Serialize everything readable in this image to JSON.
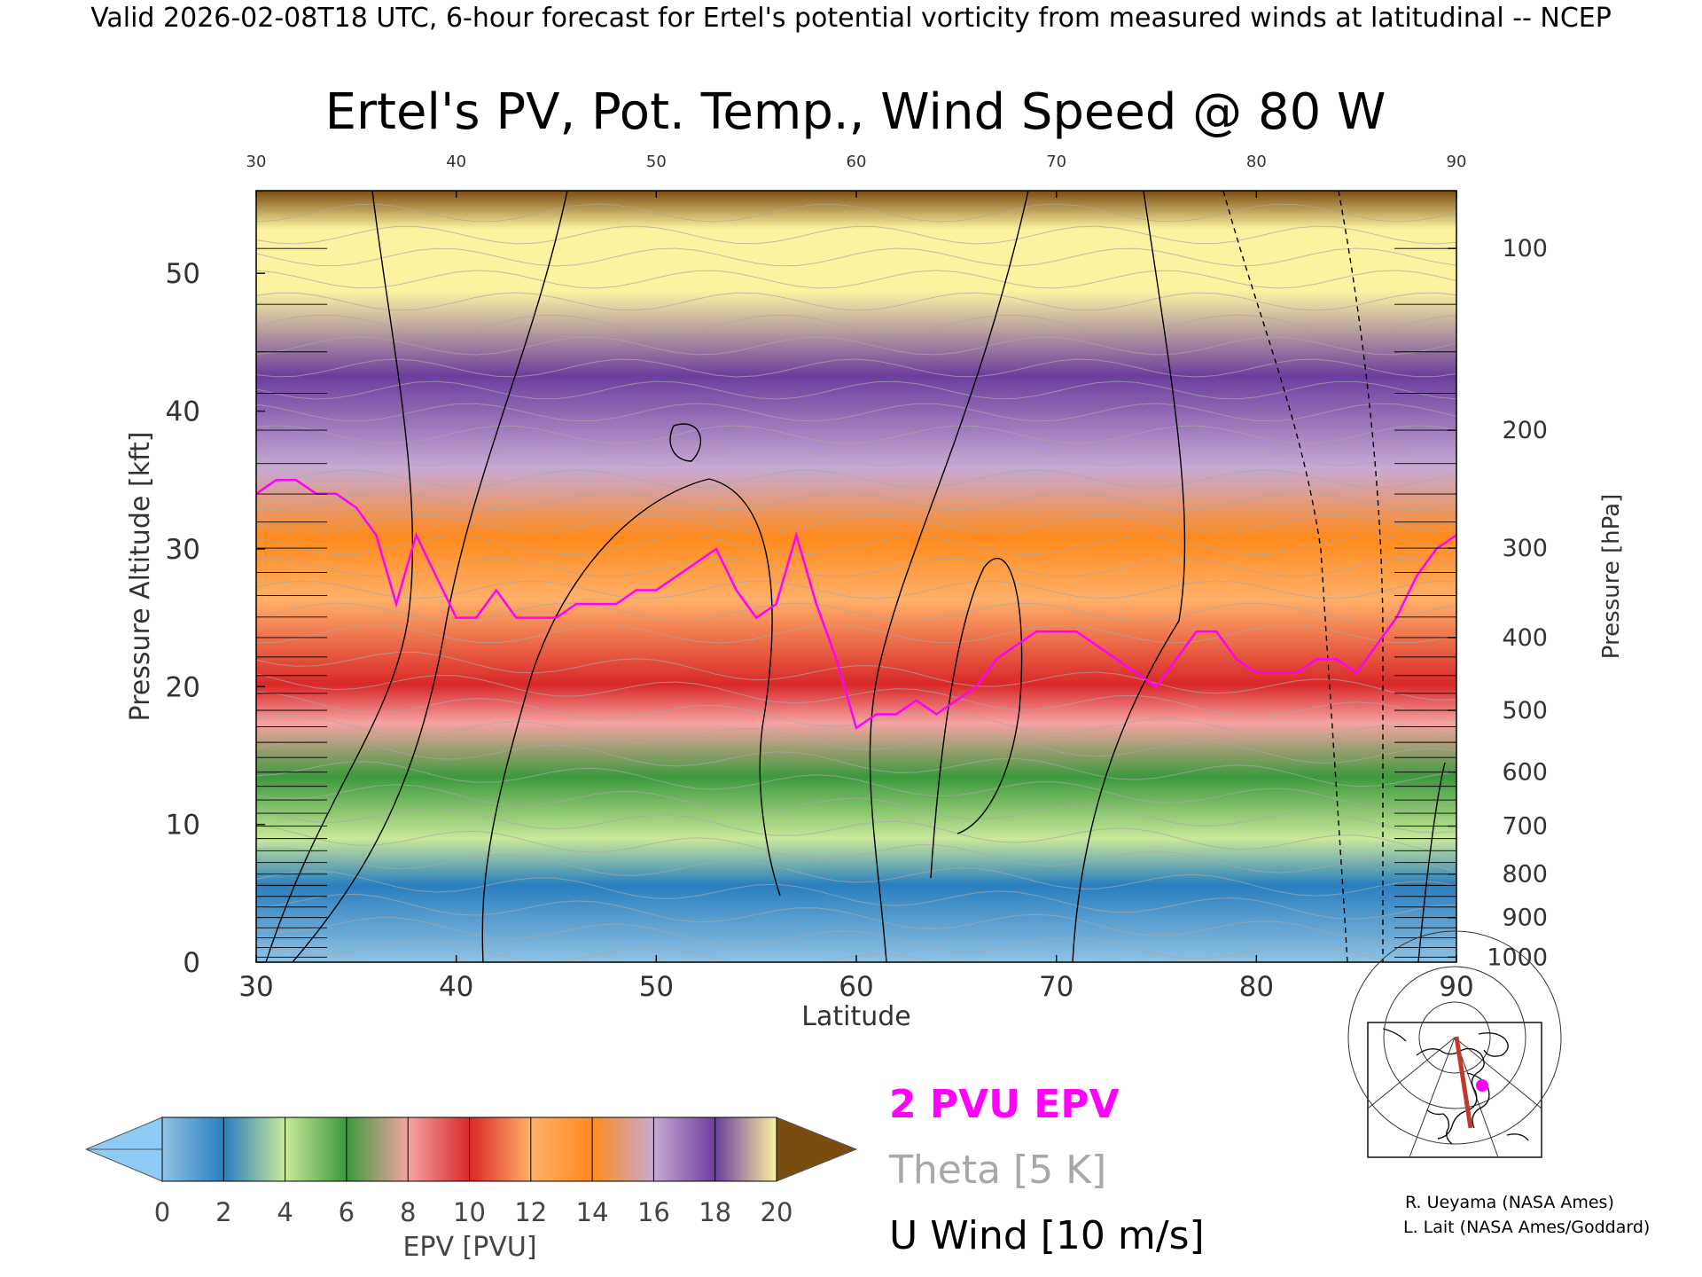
{
  "header": {
    "valid_line": "Valid 2026-02-08T18 UTC, 6-hour forecast for Ertel's potential vorticity from measured winds at latitudinal -- NCEP",
    "title": "Ertel's PV, Pot. Temp., Wind Speed @ 80 W"
  },
  "chart_data": {
    "type": "heatmap",
    "title": "Ertel's PV, Pot. Temp., Wind Speed @ 80 W",
    "xlabel": "Latitude",
    "ylabel": "Pressure Altitude [kft]",
    "y2label": "Pressure [hPa]",
    "xlim": [
      30,
      90
    ],
    "ylim": [
      0,
      56
    ],
    "x_ticks": [
      30,
      40,
      50,
      60,
      70,
      80,
      90
    ],
    "y_ticks": [
      0,
      10,
      20,
      30,
      40,
      50
    ],
    "pressure_ticks": [
      {
        "hpa": 100,
        "label": "100"
      },
      {
        "hpa": 200,
        "label": "200"
      },
      {
        "hpa": 300,
        "label": "300"
      },
      {
        "hpa": 400,
        "label": "400"
      },
      {
        "hpa": 500,
        "label": "500"
      },
      {
        "hpa": 600,
        "label": "600"
      },
      {
        "hpa": 700,
        "label": "700"
      },
      {
        "hpa": 800,
        "label": "800"
      },
      {
        "hpa": 900,
        "label": "900"
      },
      {
        "hpa": 1000,
        "label": "1000"
      }
    ],
    "two_pvu_altitude_kft": {
      "lat": [
        30,
        31,
        32,
        33,
        34,
        35,
        36,
        37,
        38,
        39,
        40,
        41,
        42,
        43,
        44,
        45,
        46,
        47,
        48,
        49,
        50,
        51,
        52,
        53,
        54,
        55,
        56,
        57,
        58,
        59,
        60,
        61,
        62,
        63,
        64,
        65,
        66,
        67,
        68,
        69,
        70,
        71,
        72,
        73,
        74,
        75,
        76,
        77,
        78,
        79,
        80,
        81,
        82,
        83,
        84,
        85,
        86,
        87,
        88,
        89,
        90
      ],
      "alt": [
        34,
        35,
        35,
        34,
        34,
        33,
        31,
        26,
        31,
        28,
        25,
        25,
        27,
        25,
        25,
        25,
        26,
        26,
        26,
        27,
        27,
        28,
        29,
        30,
        27,
        25,
        26,
        31,
        26,
        22,
        17,
        18,
        18,
        19,
        18,
        19,
        20,
        22,
        23,
        24,
        24,
        24,
        23,
        22,
        21,
        20,
        22,
        24,
        24,
        22,
        21,
        21,
        21,
        22,
        22,
        21,
        23,
        25,
        28,
        30,
        31
      ]
    },
    "pv_contour_values": [
      2
    ],
    "theta_interval_K": 5,
    "u_wind_interval_ms": 10,
    "pv_colorbar": {
      "label": "EPV [PVU]",
      "ticks": [
        "0",
        "2",
        "4",
        "6",
        "8",
        "10",
        "12",
        "14",
        "16",
        "18",
        "20"
      ],
      "min": 0,
      "max": 20,
      "extend": "both",
      "colors": [
        "#8fc2e4",
        "#2a7fbf",
        "#c9e89a",
        "#3c9a3c",
        "#f6a3a3",
        "#d92828",
        "#ffb06a",
        "#ff8a1c",
        "#c7aad4",
        "#6b3e9e",
        "#fbf3a0"
      ],
      "under_color": "#8ecbf5",
      "over_color": "#7a4c10"
    },
    "legend": {
      "pv_label": "2 PVU EPV",
      "pv_color": "#ff00ff",
      "theta_label": "Theta [5 K]",
      "theta_color": "#a8a8a8",
      "wind_label": "U Wind [10 m/s]",
      "wind_color": "#000000"
    },
    "grid": false
  },
  "credits": {
    "line1": "R. Ueyama (NASA Ames)",
    "line2": "L. Lait (NASA Ames/Goddard)"
  },
  "inset_map": {
    "marker_color": "#ff00ff",
    "track_color": "#c0392b"
  }
}
